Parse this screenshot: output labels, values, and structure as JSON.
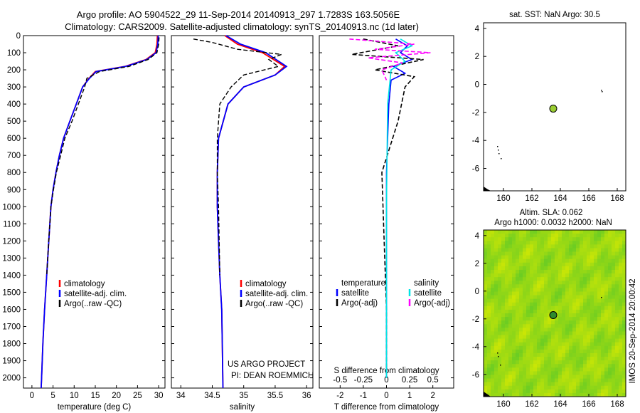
{
  "header": {
    "line1": "Argo profile: AO 5904522_29 11-Sep-2014 20140913_297 1.7283S 163.5056E",
    "line2": "Climatology: CARS2009. Satellite-adjusted climatology: synTS_20140913.nc (1d later)"
  },
  "colors": {
    "climatology": "#ff0000",
    "satellite": "#0000ff",
    "argo": "#000000",
    "salinity_sat": "#00e5e5",
    "salinity_argo": "#ff00ff",
    "sst_dot": "#9acd32"
  },
  "depth_axis": {
    "ticks": [
      0,
      100,
      200,
      300,
      400,
      500,
      600,
      700,
      800,
      900,
      1000,
      1100,
      1200,
      1300,
      1400,
      1500,
      1600,
      1700,
      1800,
      1900,
      2000
    ],
    "range": [
      0,
      2060
    ]
  },
  "chart_data": [
    {
      "type": "line",
      "panel": "temperature",
      "xlabel": "temperature (deg C)",
      "xticks": [
        0,
        5,
        10,
        15,
        20,
        25,
        30
      ],
      "xlim": [
        -2,
        31.5
      ],
      "ylim": [
        0,
        2060
      ],
      "legend": [
        "climatology",
        "satellite-adj. clim.",
        "Argo(..raw -QC)"
      ],
      "series": [
        {
          "name": "climatology",
          "x": [
            29.7,
            29.6,
            29.2,
            27,
            22,
            15,
            13.5,
            12,
            10.5,
            9,
            7.5,
            6.5,
            5.7,
            5,
            4.5,
            4,
            3.5,
            3,
            2.6,
            2.3,
            2.2
          ],
          "y": [
            0,
            50,
            100,
            140,
            180,
            210,
            250,
            300,
            400,
            500,
            600,
            700,
            800,
            900,
            1000,
            1200,
            1400,
            1600,
            1800,
            2000,
            2060
          ]
        },
        {
          "name": "satellite-adj. clim.",
          "x": [
            29.9,
            29.8,
            29.4,
            27.2,
            22.2,
            15.2,
            13.6,
            12,
            10.5,
            9,
            7.5,
            6.5,
            5.7,
            5,
            4.5,
            4,
            3.5,
            3,
            2.6,
            2.3,
            2.2
          ],
          "y": [
            0,
            50,
            100,
            140,
            180,
            210,
            250,
            300,
            400,
            500,
            600,
            700,
            800,
            900,
            1000,
            1200,
            1400,
            1600,
            1800,
            2000,
            2060
          ]
        },
        {
          "name": "Argo(..raw -QC)",
          "x": [
            30.1,
            30,
            29.6,
            27.5,
            23,
            16,
            13,
            12.5,
            11,
            9.5,
            7.8,
            6.8,
            5.8,
            5.1,
            4.5,
            4,
            3.5
          ],
          "y": [
            10,
            50,
            100,
            140,
            180,
            210,
            250,
            300,
            400,
            500,
            600,
            700,
            800,
            900,
            1000,
            1200,
            1400
          ]
        }
      ]
    },
    {
      "type": "line",
      "panel": "salinity",
      "xlabel": "salinity",
      "xticks": [
        34,
        34.5,
        35,
        35.5,
        36
      ],
      "xlim": [
        33.85,
        36.1
      ],
      "ylim": [
        0,
        2060
      ],
      "legend": [
        "climatology",
        "satellite-adj. clim.",
        "Argo(..raw -QC)"
      ],
      "series": [
        {
          "name": "climatology",
          "x": [
            34.7,
            34.9,
            35.3,
            35.65,
            35.5,
            35,
            34.75,
            34.6,
            34.58,
            34.58,
            34.6,
            34.62,
            34.65,
            34.66,
            34.67
          ],
          "y": [
            0,
            50,
            100,
            180,
            230,
            300,
            400,
            600,
            800,
            1000,
            1200,
            1400,
            1600,
            1800,
            2060
          ]
        },
        {
          "name": "satellite-adj. clim.",
          "x": [
            34.72,
            34.95,
            35.35,
            35.68,
            35.5,
            35,
            34.75,
            34.6,
            34.58,
            34.58,
            34.6,
            34.62,
            34.65,
            34.66,
            34.67
          ],
          "y": [
            0,
            50,
            100,
            180,
            230,
            300,
            400,
            600,
            800,
            1000,
            1200,
            1400,
            1600,
            1800,
            2060
          ]
        },
        {
          "name": "Argo(..raw -QC)",
          "x": [
            34.2,
            34.5,
            34.9,
            35.6,
            35.4,
            35.55,
            35,
            34.8,
            34.62,
            34.58,
            34.58,
            34.6,
            34.62
          ],
          "y": [
            20,
            40,
            80,
            110,
            140,
            180,
            230,
            300,
            400,
            600,
            800,
            1000,
            1400
          ]
        }
      ]
    },
    {
      "type": "line",
      "panel": "difference",
      "xlabel": "T difference from climatology",
      "xlabel_top": "S difference from climatology",
      "xticks": [
        -2,
        -1,
        0,
        1,
        2
      ],
      "xticks_top": [
        "-0.5",
        "-0.25",
        "0",
        "0.25",
        "0.5"
      ],
      "xlim": [
        -2.9,
        2.9
      ],
      "ylim": [
        0,
        2060
      ],
      "legend_headers": [
        "temperature",
        "salinity"
      ],
      "legend": [
        "satellite",
        "Argo(-adj)",
        "satellite",
        "Argo(-adj)"
      ],
      "series": [
        {
          "name": "satellite",
          "quantity": "temperature",
          "x": [
            0.4,
            0.9,
            0.6,
            1.1,
            0.3,
            0.8,
            0.2,
            0.1,
            0,
            0,
            0,
            0
          ],
          "y": [
            20,
            60,
            100,
            140,
            180,
            220,
            260,
            400,
            800,
            1200,
            1600,
            2000
          ]
        },
        {
          "name": "Argo(-adj)",
          "quantity": "temperature",
          "x": [
            -1,
            0.5,
            -1.5,
            1.6,
            -0.5,
            1.2,
            0.8,
            0.5,
            -0.2,
            -0.1,
            0,
            0
          ],
          "y": [
            20,
            60,
            110,
            140,
            200,
            240,
            300,
            500,
            800,
            1200,
            1600,
            2000
          ]
        },
        {
          "name": "satellite",
          "quantity": "salinity",
          "x": [
            0.6,
            1.1,
            0.4,
            0.8,
            0.2,
            0.05,
            0,
            0
          ],
          "y": [
            20,
            60,
            100,
            150,
            200,
            400,
            1000,
            2000
          ]
        },
        {
          "name": "Argo(-adj)",
          "quantity": "salinity",
          "x": [
            -1.6,
            1.2,
            -0.5,
            1.9,
            -0.8,
            0.7,
            -0.2,
            0
          ],
          "y": [
            20,
            50,
            80,
            100,
            130,
            160,
            200,
            260
          ]
        }
      ]
    },
    {
      "type": "scatter",
      "panel": "sst-map",
      "title": "sat. SST: NaN Argo: 30.5",
      "xticks": [
        160,
        162,
        164,
        166,
        168
      ],
      "yticks": [
        4,
        2,
        0,
        -2,
        -4,
        -6
      ],
      "xlim": [
        158.6,
        168.6
      ],
      "ylim": [
        -7.6,
        4.4
      ],
      "points": [
        {
          "x": 163.5,
          "y": -1.73
        }
      ]
    },
    {
      "type": "heatmap",
      "panel": "sla-map",
      "title": "Altim. SLA: 0.062",
      "subtitle": "Argo h1000: 0.0032 h2000: NaN",
      "xticks": [
        160,
        162,
        164,
        166,
        168
      ],
      "yticks": [
        4,
        2,
        0,
        -2,
        -4,
        -6
      ],
      "xlim": [
        158.6,
        168.6
      ],
      "ylim": [
        -7.6,
        4.4
      ],
      "points": [
        {
          "x": 163.5,
          "y": -1.73
        }
      ]
    }
  ],
  "panels": {
    "temperature": {
      "legend_entries": [
        "climatology",
        "satellite-adj. clim.",
        "Argo(..raw -QC)"
      ]
    },
    "salinity": {
      "legend_entries": [
        "climatology",
        "satellite-adj. clim.",
        "Argo(..raw -QC)"
      ],
      "credit1": "US ARGO PROJECT",
      "credit2": "PI: DEAN ROEMMICH"
    }
  },
  "side_stamp": "IMOS 20-Sep-2014 20:00:42"
}
